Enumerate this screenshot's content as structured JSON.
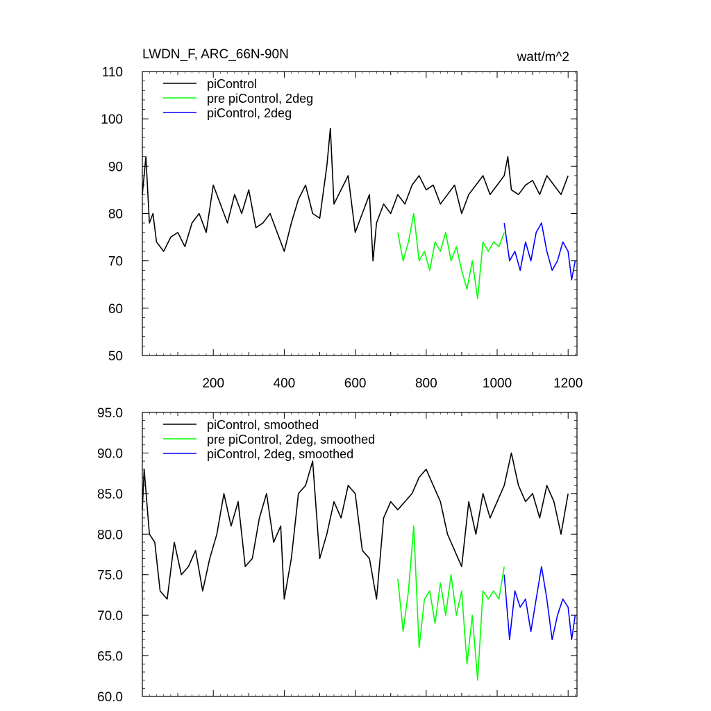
{
  "figure": {
    "title_left": "LWDN_F, ARC_66N-90N",
    "title_right": "watt/m^2"
  },
  "chart_data": [
    {
      "type": "line",
      "title": "LWDN_F, ARC_66N-90N",
      "units": "watt/m^2",
      "xlabel": "",
      "ylabel": "",
      "xlim": [
        0,
        1225
      ],
      "ylim": [
        50,
        110
      ],
      "xticks": [
        200,
        400,
        600,
        800,
        1000,
        1200
      ],
      "xtick_labels": [
        "200",
        "400",
        "600",
        "800",
        "1000",
        "1200"
      ],
      "yticks": [
        50,
        60,
        70,
        80,
        90,
        100,
        110
      ],
      "ytick_labels": [
        "50",
        "60",
        "70",
        "80",
        "90",
        "100",
        "110"
      ],
      "legend": "top-left",
      "series": [
        {
          "name": "piControl",
          "color": "#000000",
          "x": [
            0,
            10,
            20,
            30,
            40,
            60,
            80,
            100,
            120,
            140,
            160,
            180,
            200,
            220,
            240,
            260,
            280,
            300,
            320,
            340,
            360,
            380,
            400,
            420,
            440,
            460,
            480,
            500,
            520,
            530,
            540,
            560,
            580,
            600,
            620,
            640,
            650,
            660,
            680,
            700,
            720,
            740,
            760,
            780,
            800,
            820,
            840,
            860,
            880,
            900,
            920,
            940,
            960,
            980,
            1000,
            1020,
            1030,
            1040,
            1060,
            1080,
            1100,
            1120,
            1140,
            1160,
            1180,
            1200
          ],
          "y": [
            84,
            92,
            78,
            80,
            74,
            72,
            75,
            76,
            73,
            78,
            80,
            76,
            86,
            82,
            78,
            84,
            80,
            85,
            77,
            78,
            80,
            76,
            72,
            78,
            83,
            86,
            80,
            79,
            90,
            98,
            82,
            85,
            88,
            76,
            80,
            84,
            70,
            78,
            82,
            80,
            84,
            82,
            86,
            88,
            85,
            86,
            82,
            84,
            86,
            80,
            84,
            86,
            88,
            84,
            86,
            88,
            92,
            85,
            84,
            86,
            87,
            84,
            88,
            86,
            84,
            88
          ]
        },
        {
          "name": "pre piControl, 2deg",
          "color": "#00ff00",
          "x": [
            720,
            735,
            750,
            765,
            780,
            795,
            810,
            825,
            840,
            855,
            870,
            885,
            900,
            915,
            930,
            945,
            960,
            975,
            990,
            1005,
            1020
          ],
          "y": [
            76,
            70,
            74,
            80,
            70,
            72,
            68,
            74,
            72,
            76,
            70,
            73,
            68,
            64,
            70,
            62,
            74,
            72,
            74,
            73,
            76
          ]
        },
        {
          "name": "piControl, 2deg",
          "color": "#0000ff",
          "x": [
            1020,
            1035,
            1050,
            1065,
            1080,
            1095,
            1110,
            1125,
            1140,
            1155,
            1170,
            1185,
            1200,
            1210,
            1220
          ],
          "y": [
            78,
            70,
            72,
            68,
            74,
            70,
            76,
            78,
            72,
            68,
            70,
            74,
            72,
            66,
            70
          ]
        }
      ]
    },
    {
      "type": "line",
      "title": "",
      "xlabel": "",
      "ylabel": "",
      "xlim": [
        0,
        1225
      ],
      "ylim": [
        60,
        95
      ],
      "yticks": [
        60,
        65,
        70,
        75,
        80,
        85,
        90,
        95
      ],
      "ytick_labels": [
        "60.0",
        "65.0",
        "70.0",
        "75.0",
        "80.0",
        "85.0",
        "90.0",
        "95.0"
      ],
      "legend": "top-left",
      "series": [
        {
          "name": "piControl, smoothed",
          "color": "#000000",
          "x": [
            0,
            5,
            20,
            35,
            50,
            70,
            90,
            110,
            130,
            150,
            170,
            190,
            210,
            230,
            250,
            270,
            290,
            310,
            330,
            350,
            370,
            390,
            400,
            420,
            440,
            460,
            480,
            500,
            520,
            540,
            560,
            580,
            600,
            620,
            640,
            660,
            680,
            700,
            720,
            740,
            760,
            780,
            800,
            820,
            840,
            860,
            880,
            900,
            920,
            940,
            960,
            980,
            1000,
            1020,
            1040,
            1060,
            1080,
            1100,
            1120,
            1140,
            1160,
            1180,
            1200
          ],
          "y": [
            83,
            88,
            80,
            79,
            73,
            72,
            79,
            75,
            76,
            78,
            73,
            77,
            80,
            85,
            81,
            84,
            76,
            77,
            82,
            85,
            79,
            81,
            72,
            77,
            85,
            86,
            89,
            77,
            80,
            84,
            82,
            86,
            85,
            78,
            77,
            72,
            82,
            84,
            83,
            84,
            85,
            87,
            88,
            86,
            84,
            80,
            78,
            76,
            84,
            80,
            85,
            82,
            84,
            86,
            90,
            86,
            84,
            85,
            82,
            86,
            84,
            80,
            85
          ]
        },
        {
          "name": "pre piControl, 2deg, smoothed",
          "color": "#00ff00",
          "x": [
            720,
            735,
            750,
            765,
            780,
            795,
            810,
            825,
            840,
            855,
            870,
            885,
            900,
            915,
            930,
            945,
            960,
            975,
            990,
            1005,
            1020
          ],
          "y": [
            74.5,
            68,
            73,
            81,
            66,
            72,
            73,
            69,
            74,
            70,
            75,
            70,
            73,
            64,
            70,
            62,
            73,
            72,
            73,
            72,
            76
          ]
        },
        {
          "name": "piControl, 2deg, smoothed",
          "color": "#0000ff",
          "x": [
            1020,
            1035,
            1050,
            1065,
            1080,
            1095,
            1110,
            1125,
            1140,
            1155,
            1170,
            1185,
            1200,
            1210,
            1220
          ],
          "y": [
            75,
            67,
            73,
            71,
            72,
            68,
            72,
            76,
            72,
            67,
            70,
            72,
            71,
            67,
            70
          ]
        }
      ]
    }
  ]
}
